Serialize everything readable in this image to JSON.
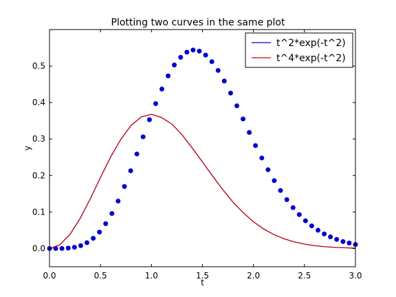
{
  "chart_data": {
    "type": "line",
    "title": "Plotting two curves in the same plot",
    "xlabel": "t",
    "ylabel": "y",
    "xlim": [
      0.0,
      3.0
    ],
    "ylim": [
      -0.05,
      0.6
    ],
    "xticks": [
      0.0,
      0.5,
      1.0,
      1.5,
      2.0,
      2.5,
      3.0
    ],
    "xtick_labels": [
      "0.0",
      "0.5",
      "1.0",
      "1.5",
      "2.0",
      "2.5",
      "3.0"
    ],
    "yticks": [
      0.0,
      0.1,
      0.2,
      0.3,
      0.4,
      0.5
    ],
    "ytick_labels": [
      "0.0",
      "0.1",
      "0.2",
      "0.3",
      "0.4",
      "0.5"
    ],
    "grid": false,
    "legend_position": "top-right",
    "series": [
      {
        "name": "t^2*exp(-t^2)",
        "color": "#0000cc",
        "style": "line",
        "x": [
          0.0,
          0.1,
          0.2,
          0.3,
          0.4,
          0.5,
          0.6,
          0.7,
          0.8,
          0.9,
          1.0,
          1.1,
          1.2,
          1.3,
          1.4,
          1.5,
          1.6,
          1.7,
          1.8,
          1.9,
          2.0,
          2.1,
          2.2,
          2.3,
          2.4,
          2.5,
          2.6,
          2.7,
          2.8,
          2.9,
          3.0
        ],
        "y": [
          0.0,
          0.0099,
          0.0384,
          0.0822,
          0.1363,
          0.1947,
          0.2511,
          0.2994,
          0.3374,
          0.3607,
          0.3679,
          0.3587,
          0.3411,
          0.3118,
          0.2753,
          0.2371,
          0.1985,
          0.1611,
          0.1269,
          0.0981,
          0.0733,
          0.0535,
          0.0383,
          0.0267,
          0.0181,
          0.0121,
          0.0078,
          0.005,
          0.0031,
          0.0019,
          0.0011
        ]
      },
      {
        "name": "t^4*exp(-t^2)",
        "color": "#0000cc",
        "style": "markers",
        "x": [
          0.0,
          0.061,
          0.122,
          0.184,
          0.245,
          0.306,
          0.367,
          0.429,
          0.49,
          0.551,
          0.612,
          0.673,
          0.735,
          0.796,
          0.857,
          0.918,
          0.98,
          1.041,
          1.102,
          1.163,
          1.224,
          1.286,
          1.347,
          1.408,
          1.469,
          1.531,
          1.592,
          1.653,
          1.714,
          1.776,
          1.837,
          1.898,
          1.959,
          2.02,
          2.082,
          2.143,
          2.204,
          2.265,
          2.327,
          2.388,
          2.449,
          2.51,
          2.571,
          2.633,
          2.694,
          2.755,
          2.816,
          2.878,
          2.939,
          3.0
        ],
        "y": [
          0.0,
          0.0,
          0.0002,
          0.0011,
          0.0034,
          0.008,
          0.016,
          0.028,
          0.045,
          0.068,
          0.096,
          0.13,
          0.17,
          0.213,
          0.259,
          0.306,
          0.353,
          0.397,
          0.437,
          0.473,
          0.503,
          0.524,
          0.538,
          0.544,
          0.541,
          0.53,
          0.512,
          0.488,
          0.459,
          0.426,
          0.391,
          0.355,
          0.318,
          0.282,
          0.248,
          0.216,
          0.186,
          0.159,
          0.134,
          0.112,
          0.093,
          0.076,
          0.062,
          0.05,
          0.04,
          0.032,
          0.025,
          0.019,
          0.015,
          0.011
        ]
      },
      {
        "name": "t^4*exp(-t^2)",
        "color": "#cc0000",
        "style": "line",
        "x": [
          0.0,
          0.1,
          0.2,
          0.3,
          0.4,
          0.5,
          0.6,
          0.7,
          0.8,
          0.9,
          1.0,
          1.1,
          1.2,
          1.3,
          1.4,
          1.5,
          1.6,
          1.7,
          1.8,
          1.9,
          2.0,
          2.1,
          2.2,
          2.3,
          2.4,
          2.5,
          2.6,
          2.7,
          2.8,
          2.9,
          3.0
        ],
        "y": [
          0.0,
          0.0099,
          0.0384,
          0.0822,
          0.1363,
          0.1947,
          0.2511,
          0.2994,
          0.3374,
          0.3607,
          0.3679,
          0.3587,
          0.3411,
          0.3118,
          0.2753,
          0.2371,
          0.1985,
          0.1611,
          0.1269,
          0.0981,
          0.0733,
          0.0535,
          0.0383,
          0.0267,
          0.0181,
          0.0121,
          0.0078,
          0.005,
          0.0031,
          0.0019,
          0.0011
        ]
      }
    ],
    "legend": [
      {
        "label": "t^2*exp(-t^2)",
        "color": "#0000cc"
      },
      {
        "label": "t^4*exp(-t^2)",
        "color": "#cc0000"
      }
    ]
  }
}
